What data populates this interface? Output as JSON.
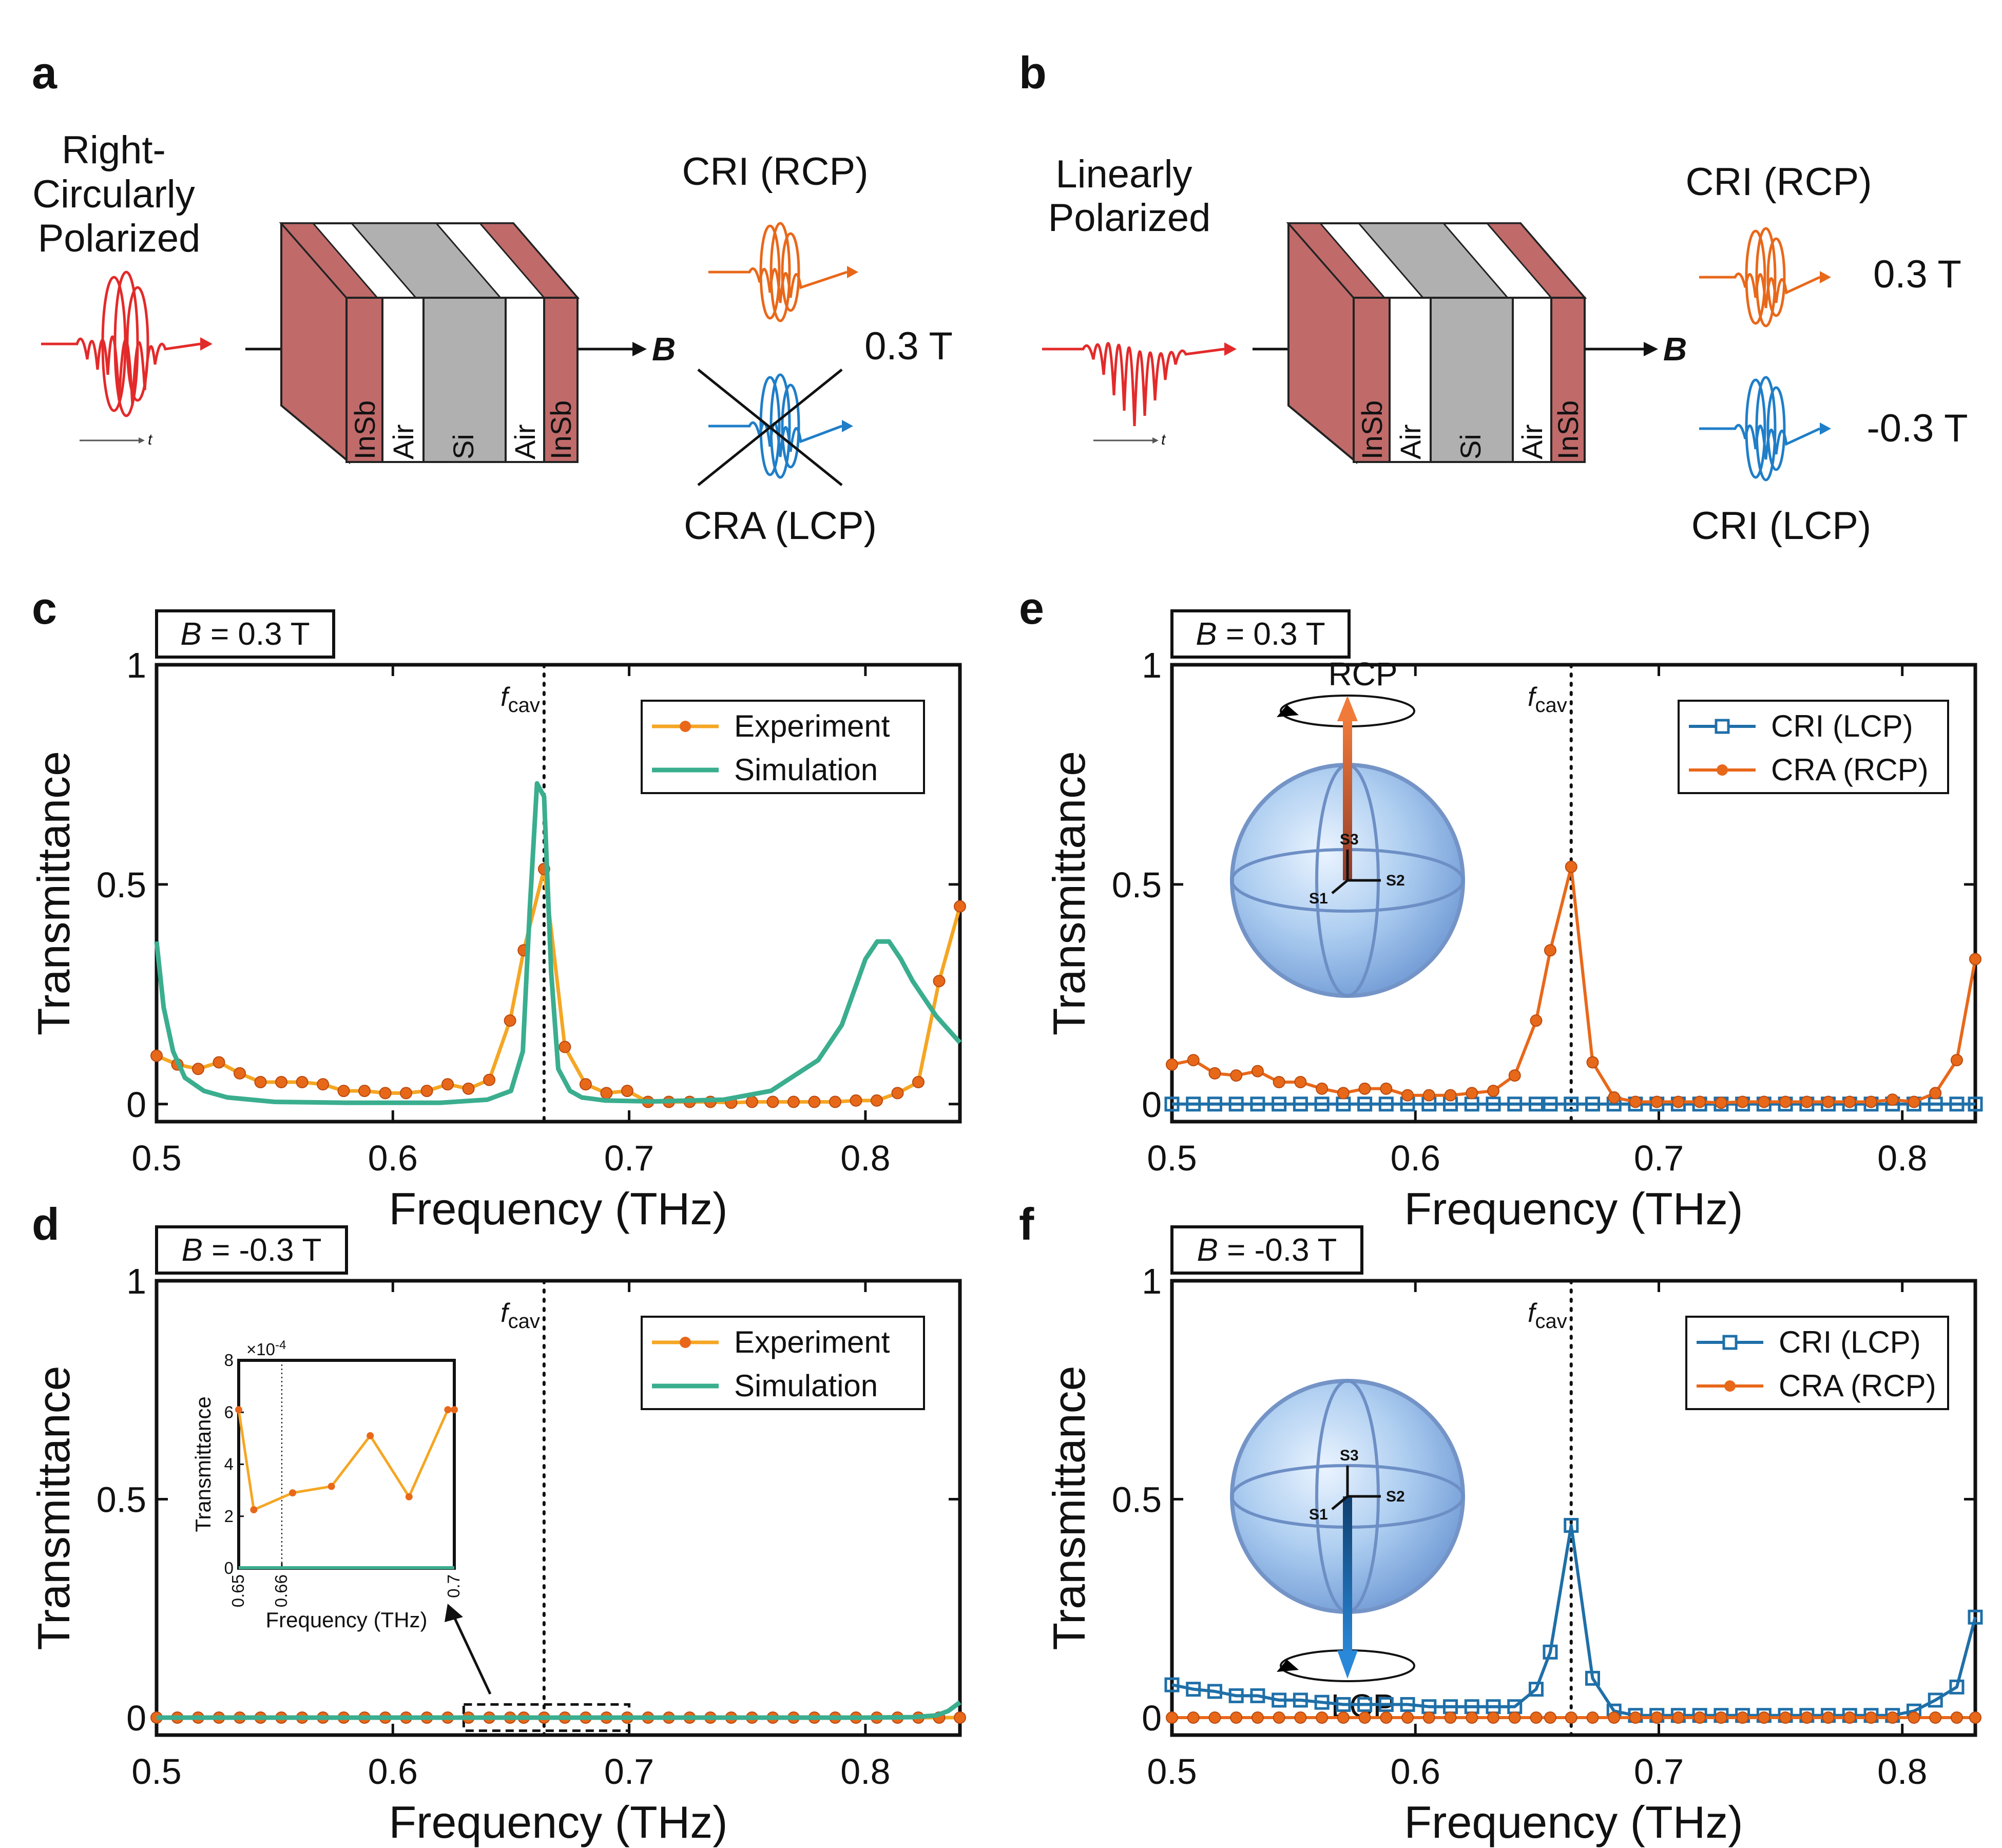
{
  "colors": {
    "experiment": "#E8681A",
    "experiment_line": "#F5A623",
    "simulation": "#3AAE8F",
    "cri_lcp": "#1F6FA8",
    "cra_rcp": "#E8681A",
    "pulse_red": "#E32A2A",
    "insb": "#C06A6A",
    "si": "#B0B0B0",
    "sphere": "#9CC2EE"
  },
  "panel_a": {
    "letter": "a",
    "input_label": [
      "Right-",
      "Circularly",
      "Polarized"
    ],
    "layers": [
      "InSb",
      "Air",
      "Si",
      "Air",
      "InSb"
    ],
    "time_label": "t",
    "b_label": "B",
    "out_top": "CRI (RCP)",
    "out_bottom": "CRA (LCP)",
    "field": "0.3 T"
  },
  "panel_b": {
    "letter": "b",
    "input_label": [
      "Linearly",
      "Polarized"
    ],
    "layers": [
      "InSb",
      "Air",
      "Si",
      "Air",
      "InSb"
    ],
    "time_label": "t",
    "b_label": "B",
    "out_top": "CRI (RCP)",
    "out_bottom": "CRI (LCP)",
    "field_top": "0.3 T",
    "field_bottom": "-0.3 T"
  },
  "chart_data": [
    {
      "id": "c",
      "letter": "c",
      "type": "line",
      "field_prefix": "B",
      "field_suffix": " = 0.3 T",
      "xlabel": "Frequency (THz)",
      "ylabel": "Transmittance",
      "xlim": [
        0.5,
        0.84
      ],
      "ylim": [
        -0.04,
        1
      ],
      "xticks": [
        0.5,
        0.6,
        0.7,
        0.8
      ],
      "xtick_labels": [
        "0.5",
        "0.6",
        "0.7",
        "0.8"
      ],
      "yticks": [
        0,
        0.5,
        1
      ],
      "ytick_labels": [
        "0",
        "0.5",
        "1"
      ],
      "fcav": 0.664,
      "fcav_label": "f",
      "fcav_sub": "cav",
      "legend": [
        "Experiment",
        "Simulation"
      ],
      "series": [
        {
          "name": "Experiment",
          "x": [
            0.5,
            0.5088,
            0.5176,
            0.5264,
            0.5352,
            0.544,
            0.5528,
            0.5616,
            0.5704,
            0.5792,
            0.588,
            0.5968,
            0.6056,
            0.6144,
            0.6232,
            0.632,
            0.6408,
            0.6496,
            0.6554,
            0.664,
            0.6728,
            0.6816,
            0.6904,
            0.6992,
            0.708,
            0.7168,
            0.7256,
            0.7344,
            0.7432,
            0.752,
            0.7608,
            0.7696,
            0.7784,
            0.7872,
            0.796,
            0.8048,
            0.8136,
            0.8224,
            0.8312,
            0.84
          ],
          "values": [
            0.11,
            0.09,
            0.08,
            0.095,
            0.07,
            0.05,
            0.05,
            0.05,
            0.045,
            0.03,
            0.03,
            0.025,
            0.025,
            0.03,
            0.045,
            0.035,
            0.055,
            0.19,
            0.35,
            0.535,
            0.13,
            0.045,
            0.025,
            0.03,
            0.005,
            0.005,
            0.005,
            0.005,
            0.003,
            0.005,
            0.005,
            0.005,
            0.005,
            0.005,
            0.008,
            0.008,
            0.025,
            0.05,
            0.28,
            0.45
          ]
        },
        {
          "name": "Simulation",
          "x": [
            0.5,
            0.503,
            0.507,
            0.512,
            0.52,
            0.53,
            0.55,
            0.58,
            0.62,
            0.64,
            0.65,
            0.655,
            0.658,
            0.661,
            0.664,
            0.667,
            0.67,
            0.675,
            0.68,
            0.69,
            0.71,
            0.74,
            0.76,
            0.78,
            0.79,
            0.8,
            0.805,
            0.81,
            0.815,
            0.82,
            0.83,
            0.84
          ],
          "values": [
            0.37,
            0.22,
            0.12,
            0.06,
            0.03,
            0.015,
            0.005,
            0.003,
            0.003,
            0.01,
            0.03,
            0.12,
            0.45,
            0.73,
            0.7,
            0.3,
            0.08,
            0.03,
            0.015,
            0.008,
            0.006,
            0.01,
            0.03,
            0.1,
            0.18,
            0.33,
            0.37,
            0.37,
            0.33,
            0.28,
            0.2,
            0.14
          ]
        }
      ]
    },
    {
      "id": "d",
      "letter": "d",
      "type": "line",
      "field_prefix": "B",
      "field_suffix": " = -0.3 T",
      "xlabel": "Frequency (THz)",
      "ylabel": "Transmittance",
      "xlim": [
        0.5,
        0.84
      ],
      "ylim": [
        -0.04,
        1
      ],
      "xticks": [
        0.5,
        0.6,
        0.7,
        0.8
      ],
      "xtick_labels": [
        "0.5",
        "0.6",
        "0.7",
        "0.8"
      ],
      "yticks": [
        0,
        0.5,
        1
      ],
      "ytick_labels": [
        "0",
        "0.5",
        "1"
      ],
      "fcav": 0.664,
      "fcav_label": "f",
      "fcav_sub": "cav",
      "legend": [
        "Experiment",
        "Simulation"
      ],
      "series": [
        {
          "name": "Experiment",
          "x": [
            0.5,
            0.5088,
            0.5176,
            0.5264,
            0.5352,
            0.544,
            0.5528,
            0.5616,
            0.5704,
            0.5792,
            0.588,
            0.5968,
            0.6056,
            0.6144,
            0.6232,
            0.632,
            0.6408,
            0.6496,
            0.6554,
            0.664,
            0.6728,
            0.6816,
            0.6904,
            0.6992,
            0.708,
            0.7168,
            0.7256,
            0.7344,
            0.7432,
            0.752,
            0.7608,
            0.7696,
            0.7784,
            0.7872,
            0.796,
            0.8048,
            0.8136,
            0.8224,
            0.8312,
            0.84
          ],
          "values": [
            0,
            0,
            0,
            0,
            0,
            0,
            0,
            0,
            0,
            0,
            0,
            0,
            0,
            0,
            0,
            0,
            0,
            0,
            0,
            0,
            0,
            0,
            0,
            0,
            0,
            0,
            0,
            0,
            0,
            0,
            0,
            0,
            0,
            0,
            0,
            0,
            0,
            0,
            0,
            0
          ]
        },
        {
          "name": "Simulation",
          "x": [
            0.5,
            0.6,
            0.7,
            0.8,
            0.82,
            0.83,
            0.835,
            0.84
          ],
          "values": [
            0,
            0,
            0,
            0,
            0.001,
            0.005,
            0.015,
            0.035
          ]
        }
      ],
      "zoom_box_x": [
        0.63,
        0.7
      ],
      "inset": {
        "xlabel": "Frequency (THz)",
        "ylabel": "Transmittance",
        "xlim": [
          0.65,
          0.7
        ],
        "ylim": [
          0,
          8
        ],
        "xticks": [
          0.65,
          0.66,
          0.7
        ],
        "xtick_labels": [
          "0.65",
          "0.66",
          "0.7"
        ],
        "yticks": [
          0,
          2,
          4,
          6,
          8
        ],
        "ytick_labels": [
          "0",
          "2",
          "4",
          "6",
          "8"
        ],
        "exponent": "×10",
        "exponent_power": "-4",
        "fcav": 0.66,
        "series": [
          {
            "name": "Experiment",
            "x": [
              0.65,
              0.6535,
              0.6625,
              0.6715,
              0.6805,
              0.6895,
              0.6985,
              0.7
            ],
            "values": [
              6.1,
              2.25,
              2.9,
              3.15,
              5.1,
              2.75,
              6.1,
              6.1
            ]
          },
          {
            "name": "Simulation",
            "x": [
              0.65,
              0.7
            ],
            "values": [
              0.02,
              0.02
            ]
          }
        ]
      }
    },
    {
      "id": "e",
      "letter": "e",
      "type": "line",
      "field_prefix": "B",
      "field_suffix": " = 0.3 T",
      "xlabel": "Frequency (THz)",
      "ylabel": "Transmittance",
      "xlim": [
        0.5,
        0.83
      ],
      "ylim": [
        -0.04,
        1
      ],
      "xticks": [
        0.5,
        0.6,
        0.7,
        0.8
      ],
      "xtick_labels": [
        "0.5",
        "0.6",
        "0.7",
        "0.8"
      ],
      "yticks": [
        0,
        0.5,
        1
      ],
      "ytick_labels": [
        "0",
        "0.5",
        "1"
      ],
      "fcav": 0.664,
      "fcav_label": "f",
      "fcav_sub": "cav",
      "legend": [
        "CRI (LCP)",
        "CRA (RCP)"
      ],
      "sphere_label": "RCP",
      "sphere_dir": "up",
      "stokes": [
        "S3",
        "S2",
        "S1"
      ],
      "series": [
        {
          "name": "CRI (LCP)",
          "x": [
            0.5,
            0.5088,
            0.5176,
            0.5264,
            0.5352,
            0.544,
            0.5528,
            0.5616,
            0.5704,
            0.5792,
            0.588,
            0.5968,
            0.6056,
            0.6144,
            0.6232,
            0.632,
            0.6408,
            0.6496,
            0.6554,
            0.664,
            0.6728,
            0.6816,
            0.6904,
            0.6992,
            0.708,
            0.7168,
            0.7256,
            0.7344,
            0.7432,
            0.752,
            0.7608,
            0.7696,
            0.7784,
            0.7872,
            0.796,
            0.8048,
            0.8136,
            0.8224,
            0.83
          ],
          "values": [
            0,
            0,
            0,
            0,
            0,
            0,
            0,
            0,
            0,
            0,
            0,
            0,
            0,
            0,
            0,
            0,
            0,
            0,
            0,
            0,
            0,
            0,
            0,
            0,
            0,
            0,
            0,
            0,
            0,
            0,
            0,
            0,
            0,
            0,
            0,
            0,
            0,
            0,
            0
          ]
        },
        {
          "name": "CRA (RCP)",
          "x": [
            0.5,
            0.5088,
            0.5176,
            0.5264,
            0.5352,
            0.544,
            0.5528,
            0.5616,
            0.5704,
            0.5792,
            0.588,
            0.5968,
            0.6056,
            0.6144,
            0.6232,
            0.632,
            0.6408,
            0.6496,
            0.6554,
            0.664,
            0.6728,
            0.6816,
            0.6904,
            0.6992,
            0.708,
            0.7168,
            0.7256,
            0.7344,
            0.7432,
            0.752,
            0.7608,
            0.7696,
            0.7784,
            0.7872,
            0.796,
            0.8048,
            0.8136,
            0.8224,
            0.83
          ],
          "values": [
            0.09,
            0.1,
            0.07,
            0.065,
            0.075,
            0.05,
            0.05,
            0.035,
            0.025,
            0.035,
            0.035,
            0.02,
            0.02,
            0.02,
            0.025,
            0.03,
            0.065,
            0.19,
            0.35,
            0.54,
            0.095,
            0.015,
            0.005,
            0.005,
            0.005,
            0.005,
            0.003,
            0.005,
            0.005,
            0.005,
            0.005,
            0.005,
            0.005,
            0.005,
            0.01,
            0.005,
            0.025,
            0.1,
            0.33
          ]
        }
      ]
    },
    {
      "id": "f",
      "letter": "f",
      "type": "line",
      "field_prefix": "B",
      "field_suffix": " = -0.3 T",
      "xlabel": "Frequency (THz)",
      "ylabel": "Transmittance",
      "xlim": [
        0.5,
        0.83
      ],
      "ylim": [
        -0.04,
        1
      ],
      "xticks": [
        0.5,
        0.6,
        0.7,
        0.8
      ],
      "xtick_labels": [
        "0.5",
        "0.6",
        "0.7",
        "0.8"
      ],
      "yticks": [
        0,
        0.5,
        1
      ],
      "ytick_labels": [
        "0",
        "0.5",
        "1"
      ],
      "fcav": 0.664,
      "fcav_label": "f",
      "fcav_sub": "cav",
      "legend": [
        "CRI (LCP)",
        "CRA (RCP)"
      ],
      "sphere_label": "LCP",
      "sphere_dir": "down",
      "stokes": [
        "S3",
        "S2",
        "S1"
      ],
      "series": [
        {
          "name": "CRI (LCP)",
          "x": [
            0.5,
            0.5088,
            0.5176,
            0.5264,
            0.5352,
            0.544,
            0.5528,
            0.5616,
            0.5704,
            0.5792,
            0.588,
            0.5968,
            0.6056,
            0.6144,
            0.6232,
            0.632,
            0.6408,
            0.6496,
            0.6554,
            0.664,
            0.6728,
            0.6816,
            0.6904,
            0.6992,
            0.708,
            0.7168,
            0.7256,
            0.7344,
            0.7432,
            0.752,
            0.7608,
            0.7696,
            0.7784,
            0.7872,
            0.796,
            0.8048,
            0.8136,
            0.8224,
            0.83
          ],
          "values": [
            0.075,
            0.065,
            0.06,
            0.05,
            0.05,
            0.04,
            0.04,
            0.035,
            0.03,
            0.03,
            0.03,
            0.03,
            0.025,
            0.025,
            0.025,
            0.025,
            0.025,
            0.065,
            0.15,
            0.44,
            0.09,
            0.015,
            0.005,
            0.005,
            0.005,
            0.005,
            0.005,
            0.005,
            0.005,
            0.005,
            0.005,
            0.005,
            0.005,
            0.005,
            0.005,
            0.015,
            0.04,
            0.07,
            0.23
          ]
        },
        {
          "name": "CRA (RCP)",
          "x": [
            0.5,
            0.5088,
            0.5176,
            0.5264,
            0.5352,
            0.544,
            0.5528,
            0.5616,
            0.5704,
            0.5792,
            0.588,
            0.5968,
            0.6056,
            0.6144,
            0.6232,
            0.632,
            0.6408,
            0.6496,
            0.6554,
            0.664,
            0.6728,
            0.6816,
            0.6904,
            0.6992,
            0.708,
            0.7168,
            0.7256,
            0.7344,
            0.7432,
            0.752,
            0.7608,
            0.7696,
            0.7784,
            0.7872,
            0.796,
            0.8048,
            0.8136,
            0.8224,
            0.83
          ],
          "values": [
            0,
            0,
            0,
            0,
            0,
            0,
            0,
            0,
            0,
            0,
            0,
            0,
            0,
            0,
            0,
            0,
            0,
            0,
            0,
            0,
            0,
            0,
            0,
            0,
            0,
            0,
            0,
            0,
            0,
            0,
            0,
            0,
            0,
            0,
            0,
            0,
            0,
            0,
            0
          ]
        }
      ]
    }
  ]
}
